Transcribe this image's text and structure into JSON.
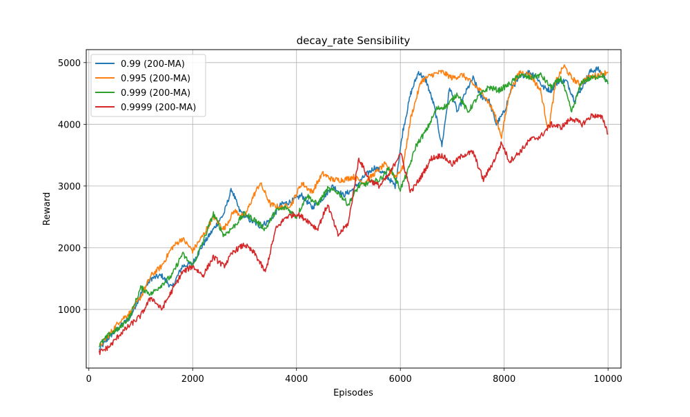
{
  "chart_data": {
    "type": "line",
    "title": "decay_rate Sensibility",
    "xlabel": "Episodes",
    "ylabel": "Reward",
    "xlim": [
      -50,
      10250
    ],
    "ylim": [
      50,
      5210
    ],
    "xticks": [
      0,
      2000,
      4000,
      6000,
      8000,
      10000
    ],
    "yticks": [
      1000,
      2000,
      3000,
      4000,
      5000
    ],
    "grid": true,
    "legend_position": "top-left",
    "series": [
      {
        "name": "0.99 (200-MA)",
        "color": "#1f77b4",
        "x": [
          200,
          400,
          600,
          800,
          1000,
          1200,
          1400,
          1600,
          1800,
          2000,
          2200,
          2400,
          2600,
          2750,
          2900,
          3100,
          3300,
          3500,
          3700,
          3900,
          4100,
          4300,
          4500,
          4700,
          4900,
          5100,
          5300,
          5500,
          5700,
          5900,
          6050,
          6200,
          6350,
          6500,
          6650,
          6800,
          6950,
          7100,
          7250,
          7400,
          7550,
          7700,
          7850,
          8000,
          8150,
          8300,
          8450,
          8600,
          8750,
          8900,
          9050,
          9200,
          9350,
          9500,
          9650,
          9800,
          10000
        ],
        "y": [
          350,
          560,
          720,
          880,
          1250,
          1500,
          1550,
          1350,
          1700,
          1750,
          2050,
          2300,
          2550,
          2950,
          2600,
          2450,
          2350,
          2450,
          2700,
          2750,
          2850,
          2650,
          2800,
          3000,
          2850,
          2950,
          3150,
          3300,
          3200,
          3000,
          3900,
          4500,
          4850,
          4700,
          4300,
          3650,
          4600,
          4200,
          4500,
          4750,
          4450,
          4400,
          4000,
          4200,
          4600,
          4750,
          4850,
          4800,
          4600,
          4550,
          4700,
          4700,
          4400,
          4600,
          4850,
          4900,
          4700
        ]
      },
      {
        "name": "0.995 (200-MA)",
        "color": "#ff7f0e",
        "x": [
          200,
          400,
          600,
          800,
          1000,
          1200,
          1400,
          1600,
          1800,
          2000,
          2200,
          2400,
          2600,
          2800,
          3000,
          3150,
          3300,
          3500,
          3700,
          3900,
          4100,
          4300,
          4500,
          4700,
          4900,
          5100,
          5300,
          5500,
          5700,
          5900,
          6050,
          6200,
          6400,
          6600,
          6800,
          7000,
          7200,
          7400,
          7600,
          7800,
          7950,
          8100,
          8300,
          8500,
          8700,
          8850,
          9000,
          9150,
          9300,
          9450,
          9600,
          9800,
          10000
        ],
        "y": [
          400,
          600,
          820,
          950,
          1200,
          1550,
          1700,
          2000,
          2150,
          1950,
          2200,
          2500,
          2300,
          2600,
          2500,
          2800,
          3050,
          2700,
          2650,
          2700,
          3050,
          2900,
          3200,
          3100,
          3100,
          3150,
          3050,
          3200,
          3350,
          3150,
          3300,
          4100,
          4700,
          4800,
          4850,
          4750,
          4800,
          4650,
          4500,
          4200,
          3800,
          4500,
          4850,
          4800,
          4550,
          3900,
          4700,
          4950,
          4750,
          4650,
          4750,
          4800,
          4850
        ]
      },
      {
        "name": "0.999 (200-MA)",
        "color": "#2ca02c",
        "x": [
          200,
          400,
          600,
          800,
          1000,
          1200,
          1400,
          1600,
          1800,
          2000,
          2200,
          2400,
          2600,
          2800,
          3000,
          3200,
          3400,
          3600,
          3800,
          4000,
          4200,
          4400,
          4600,
          4800,
          5000,
          5200,
          5400,
          5600,
          5800,
          6000,
          6150,
          6300,
          6500,
          6700,
          6900,
          7100,
          7300,
          7500,
          7700,
          7900,
          8100,
          8300,
          8500,
          8700,
          8900,
          9100,
          9300,
          9500,
          9700,
          9900,
          10000
        ],
        "y": [
          420,
          600,
          700,
          900,
          1350,
          1250,
          1400,
          1550,
          1900,
          1700,
          2100,
          2550,
          2200,
          2350,
          2550,
          2450,
          2300,
          2600,
          2650,
          2500,
          2850,
          2700,
          2950,
          2900,
          2700,
          3000,
          3050,
          3100,
          3300,
          2950,
          3250,
          3650,
          3900,
          4250,
          4300,
          4500,
          4200,
          4450,
          4600,
          4550,
          4650,
          4800,
          4750,
          4800,
          4600,
          4750,
          4200,
          4700,
          4750,
          4800,
          4650
        ]
      },
      {
        "name": "0.9999 (200-MA)",
        "color": "#d62728",
        "x": [
          200,
          400,
          600,
          800,
          1000,
          1200,
          1400,
          1600,
          1800,
          2000,
          2200,
          2400,
          2600,
          2800,
          3000,
          3200,
          3400,
          3600,
          3800,
          4000,
          4200,
          4400,
          4600,
          4800,
          5000,
          5200,
          5400,
          5600,
          5800,
          6000,
          6200,
          6400,
          6600,
          6800,
          7000,
          7200,
          7400,
          7600,
          7800,
          7950,
          8100,
          8300,
          8500,
          8700,
          8900,
          9100,
          9300,
          9500,
          9700,
          9900,
          10000
        ],
        "y": [
          300,
          400,
          600,
          750,
          900,
          1200,
          1000,
          1300,
          1600,
          1700,
          1550,
          1850,
          1700,
          1950,
          2050,
          1900,
          1600,
          2300,
          2500,
          2550,
          2450,
          2300,
          2700,
          2200,
          2400,
          3450,
          3100,
          3000,
          3200,
          3550,
          2900,
          3150,
          3450,
          3500,
          3350,
          3500,
          3550,
          3100,
          3400,
          3700,
          3400,
          3550,
          3750,
          3800,
          4000,
          3950,
          4100,
          4000,
          4150,
          4100,
          3850
        ]
      }
    ]
  }
}
